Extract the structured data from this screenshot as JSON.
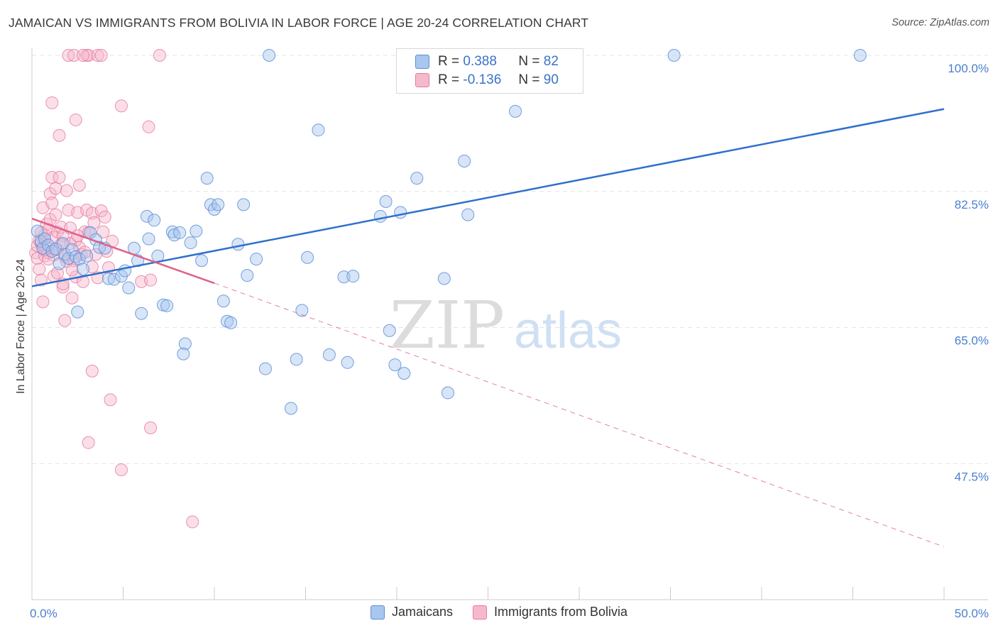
{
  "title": "JAMAICAN VS IMMIGRANTS FROM BOLIVIA IN LABOR FORCE | AGE 20-24 CORRELATION CHART",
  "source": "Source: ZipAtlas.com",
  "watermark": {
    "zip": "ZIP",
    "atlas": "atlas"
  },
  "legend": {
    "rows": [
      {
        "r_label": "R =",
        "r_value": "0.388",
        "n_label": "N =",
        "n_value": "82"
      },
      {
        "r_label": "R =",
        "r_value": "-0.136",
        "n_label": "N =",
        "n_value": "90"
      }
    ]
  },
  "bottom_legend": [
    "Jamaicans",
    "Immigrants from Bolivia"
  ],
  "colors": {
    "blue_fill": "#a9c6ee",
    "blue_stroke": "#5a8fd8",
    "blue_line": "#2f6fcc",
    "pink_fill": "#f6b9cc",
    "pink_stroke": "#e6789d",
    "pink_line": "#e0608a",
    "tick_text": "#4a7fcf",
    "grid": "#e4e4e4"
  },
  "chart_data": {
    "type": "scatter",
    "title": "JAMAICAN VS IMMIGRANTS FROM BOLIVIA IN LABOR FORCE | AGE 20-24 CORRELATION CHART",
    "xlabel": "",
    "ylabel": "In Labor Force | Age 20-24",
    "xlim": [
      0,
      50
    ],
    "ylim": [
      30,
      100
    ],
    "x_tick_labels": [
      "0.0%",
      "50.0%"
    ],
    "y_ticks": [
      47.5,
      65.0,
      82.5,
      100.0
    ],
    "y_tick_labels": [
      "47.5%",
      "65.0%",
      "82.5%",
      "100.0%"
    ],
    "grid": "horizontal dashed",
    "legend_position": "top-center",
    "series": [
      {
        "name": "Jamaicans",
        "r": 0.388,
        "n": 82,
        "trend": {
          "x0": 0,
          "y0": 70.3,
          "x1": 50,
          "y1": 93.1
        },
        "points": [
          [
            0.3,
            77.4
          ],
          [
            0.5,
            76.1
          ],
          [
            0.6,
            75.2
          ],
          [
            0.7,
            76.4
          ],
          [
            0.9,
            75.6
          ],
          [
            1.1,
            74.8
          ],
          [
            1.3,
            75.1
          ],
          [
            1.5,
            73.2
          ],
          [
            1.7,
            75.8
          ],
          [
            1.8,
            74.4
          ],
          [
            2.0,
            73.9
          ],
          [
            2.2,
            75.0
          ],
          [
            2.4,
            74.1
          ],
          [
            2.6,
            73.8
          ],
          [
            2.8,
            72.5
          ],
          [
            3.0,
            74.2
          ],
          [
            3.2,
            77.2
          ],
          [
            3.5,
            76.3
          ],
          [
            3.7,
            75.3
          ],
          [
            4.0,
            75.2
          ],
          [
            2.5,
            67.0
          ],
          [
            4.2,
            71.3
          ],
          [
            4.5,
            71.2
          ],
          [
            4.9,
            71.6
          ],
          [
            5.1,
            72.3
          ],
          [
            5.3,
            70.1
          ],
          [
            5.6,
            75.2
          ],
          [
            5.8,
            73.6
          ],
          [
            6.0,
            66.8
          ],
          [
            6.3,
            79.3
          ],
          [
            6.4,
            76.4
          ],
          [
            6.7,
            78.8
          ],
          [
            6.9,
            74.2
          ],
          [
            7.2,
            67.9
          ],
          [
            7.4,
            67.8
          ],
          [
            7.7,
            77.3
          ],
          [
            7.8,
            76.9
          ],
          [
            8.1,
            77.2
          ],
          [
            8.4,
            62.9
          ],
          [
            8.3,
            61.6
          ],
          [
            8.7,
            75.9
          ],
          [
            9.0,
            77.4
          ],
          [
            9.3,
            73.6
          ],
          [
            9.6,
            84.2
          ],
          [
            9.8,
            80.8
          ],
          [
            10.0,
            80.2
          ],
          [
            10.2,
            80.8
          ],
          [
            10.5,
            68.4
          ],
          [
            10.7,
            65.8
          ],
          [
            10.9,
            65.6
          ],
          [
            11.3,
            75.7
          ],
          [
            11.6,
            80.8
          ],
          [
            11.8,
            71.7
          ],
          [
            12.3,
            73.8
          ],
          [
            12.8,
            59.7
          ],
          [
            13.0,
            100.0
          ],
          [
            14.2,
            54.6
          ],
          [
            14.5,
            60.9
          ],
          [
            14.8,
            67.2
          ],
          [
            15.1,
            74.0
          ],
          [
            15.7,
            90.4
          ],
          [
            16.3,
            61.5
          ],
          [
            17.1,
            71.5
          ],
          [
            17.6,
            71.6
          ],
          [
            17.3,
            60.5
          ],
          [
            19.1,
            79.3
          ],
          [
            19.4,
            81.2
          ],
          [
            19.6,
            64.6
          ],
          [
            19.9,
            60.2
          ],
          [
            20.2,
            79.8
          ],
          [
            20.4,
            59.1
          ],
          [
            21.1,
            84.2
          ],
          [
            22.6,
            71.3
          ],
          [
            22.8,
            56.6
          ],
          [
            23.7,
            86.4
          ],
          [
            23.9,
            79.5
          ],
          [
            26.5,
            92.8
          ],
          [
            20.7,
            100.0
          ],
          [
            27.2,
            100.0
          ],
          [
            28.3,
            100.0
          ],
          [
            35.2,
            100.0
          ],
          [
            45.4,
            100.0
          ]
        ]
      },
      {
        "name": "Immigrants from Bolivia",
        "r": -0.136,
        "n": 90,
        "trend_solid": {
          "x0": 0,
          "y0": 79.0,
          "x1": 10,
          "y1": 70.7
        },
        "trend_dashed": {
          "x0": 10,
          "y0": 70.7,
          "x1": 50,
          "y1": 36.8
        },
        "points": [
          [
            0.2,
            74.6
          ],
          [
            0.3,
            75.5
          ],
          [
            0.3,
            73.9
          ],
          [
            0.4,
            76.2
          ],
          [
            0.4,
            72.5
          ],
          [
            0.5,
            75.8
          ],
          [
            0.5,
            71.1
          ],
          [
            0.6,
            68.3
          ],
          [
            0.6,
            80.4
          ],
          [
            0.7,
            76.9
          ],
          [
            0.7,
            74.2
          ],
          [
            0.8,
            78.3
          ],
          [
            0.8,
            75.3
          ],
          [
            0.9,
            77.6
          ],
          [
            0.9,
            74.6
          ],
          [
            1.0,
            82.2
          ],
          [
            1.0,
            78.9
          ],
          [
            1.1,
            84.3
          ],
          [
            1.1,
            81.0
          ],
          [
            1.2,
            76.6
          ],
          [
            1.2,
            74.3
          ],
          [
            1.3,
            82.9
          ],
          [
            1.3,
            79.5
          ],
          [
            1.4,
            77.3
          ],
          [
            1.4,
            75.0
          ],
          [
            1.5,
            84.3
          ],
          [
            1.5,
            89.7
          ],
          [
            1.6,
            77.9
          ],
          [
            1.7,
            70.2
          ],
          [
            1.7,
            76.8
          ],
          [
            1.8,
            65.9
          ],
          [
            1.8,
            74.1
          ],
          [
            1.9,
            82.6
          ],
          [
            1.9,
            73.5
          ],
          [
            2.0,
            80.1
          ],
          [
            2.1,
            77.8
          ],
          [
            2.1,
            75.8
          ],
          [
            2.2,
            68.8
          ],
          [
            2.3,
            73.6
          ],
          [
            2.4,
            71.5
          ],
          [
            2.4,
            76.2
          ],
          [
            2.5,
            79.8
          ],
          [
            2.6,
            83.3
          ],
          [
            2.6,
            75.3
          ],
          [
            2.7,
            74.4
          ],
          [
            2.8,
            70.9
          ],
          [
            2.9,
            77.3
          ],
          [
            3.0,
            80.1
          ],
          [
            3.1,
            77.2
          ],
          [
            3.3,
            79.7
          ],
          [
            3.3,
            72.8
          ],
          [
            3.5,
            74.4
          ],
          [
            3.6,
            71.4
          ],
          [
            3.8,
            80.0
          ],
          [
            3.9,
            77.3
          ],
          [
            4.0,
            79.2
          ],
          [
            4.1,
            74.8
          ],
          [
            4.2,
            72.7
          ],
          [
            1.1,
            93.9
          ],
          [
            2.4,
            91.7
          ],
          [
            3.1,
            50.2
          ],
          [
            3.3,
            59.4
          ],
          [
            4.3,
            55.7
          ],
          [
            4.9,
            46.7
          ],
          [
            4.9,
            93.5
          ],
          [
            6.0,
            70.9
          ],
          [
            6.4,
            90.8
          ],
          [
            6.5,
            52.1
          ],
          [
            6.5,
            71.1
          ],
          [
            8.8,
            40.0
          ],
          [
            1.7,
            70.6
          ],
          [
            2.2,
            72.4
          ],
          [
            2.0,
            100.0
          ],
          [
            3.0,
            100.0
          ],
          [
            3.1,
            100.0
          ],
          [
            3.6,
            100.0
          ],
          [
            3.8,
            100.0
          ],
          [
            7.0,
            100.0
          ],
          [
            2.3,
            100.0
          ],
          [
            2.8,
            100.0
          ],
          [
            1.2,
            71.6
          ],
          [
            0.9,
            73.8
          ],
          [
            1.6,
            75.7
          ],
          [
            2.5,
            76.8
          ],
          [
            3.4,
            78.5
          ],
          [
            4.4,
            76.1
          ],
          [
            0.7,
            75.0
          ],
          [
            1.4,
            72.0
          ],
          [
            2.9,
            74.7
          ],
          [
            0.5,
            77.2
          ]
        ]
      }
    ]
  }
}
